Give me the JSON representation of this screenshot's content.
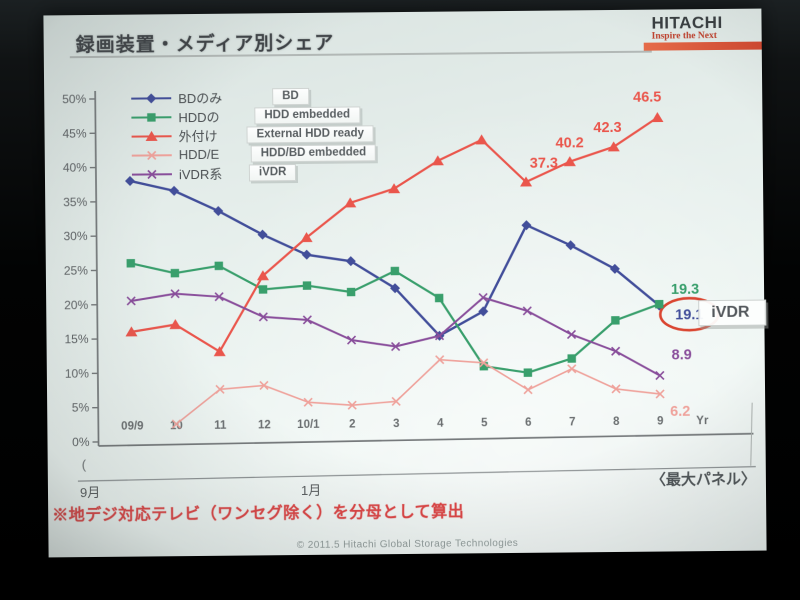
{
  "slide": {
    "title": "録画装置・メディア別シェア",
    "logo": {
      "brand": "HITACHI",
      "tagline": "Inspire the Next"
    },
    "footnote": "※地デジ対応テレビ（ワンセグ除く）を分母として算出",
    "panel_note": "〈最大パネル〉",
    "copyright": "© 2011.5 Hitachi Global Storage Technologies",
    "ivdr_callout": "iVDR",
    "left_paren": "("
  },
  "chart_data": {
    "type": "line",
    "title": "録画装置・メディア別シェア",
    "x_categories": [
      "09/9",
      "10",
      "11",
      "12",
      "10/1",
      "2",
      "3",
      "4",
      "5",
      "6",
      "7",
      "8",
      "9"
    ],
    "x_axis_suffix": "Yr",
    "y_ticks": [
      "0%",
      "5%",
      "10%",
      "15%",
      "20%",
      "25%",
      "30%",
      "35%",
      "40%",
      "45%",
      "50%"
    ],
    "ylim": [
      0,
      50
    ],
    "grid": false,
    "legend_position": "top-left",
    "sub_axis": {
      "start_label": "9月",
      "mid_label": "1月"
    },
    "annotation_circle_color": "#e0442e",
    "series": [
      {
        "name_jp": "BDのみ",
        "name_en": "BD",
        "color": "#414e9e",
        "marker": "diamond",
        "width": 2.4,
        "values": [
          38,
          36.5,
          33.5,
          30,
          27,
          26,
          22,
          15,
          18.5,
          31,
          28,
          24.5,
          19.1
        ],
        "end_label": {
          "text": "19.1",
          "dx": 30,
          "dy": 14,
          "circled": true
        }
      },
      {
        "name_jp": "HDDの",
        "name_en": "HDD embedded",
        "color": "#35a06b",
        "marker": "square",
        "width": 2.2,
        "values": [
          26,
          24.5,
          25.5,
          22,
          22.5,
          21.5,
          24.5,
          20.5,
          10.5,
          9.5,
          11.5,
          17,
          19.3
        ],
        "end_label": {
          "text": "19.3",
          "dx": 26,
          "dy": -10
        }
      },
      {
        "name_jp": "外付け",
        "name_en": "External HDD ready",
        "color": "#f0544a",
        "marker": "triangle",
        "width": 2.2,
        "values": [
          16,
          17,
          13,
          24,
          29.5,
          34.5,
          36.5,
          40.5,
          43.5,
          37.3,
          40.2,
          42.3,
          46.5
        ],
        "point_labels": [
          {
            "index": 9,
            "text": "37.3",
            "dx": 18,
            "dy": -14
          },
          {
            "index": 10,
            "text": "40.2",
            "dx": 0,
            "dy": -14
          },
          {
            "index": 11,
            "text": "42.3",
            "dx": -6,
            "dy": -15
          },
          {
            "index": 12,
            "text": "46.5",
            "dx": -10,
            "dy": -16
          }
        ]
      },
      {
        "name_jp": "HDD/E",
        "name_en": "HDD/BD embedded",
        "color": "#f2a19a",
        "marker": "x",
        "width": 1.6,
        "values": [
          null,
          2.5,
          7.5,
          8,
          5.5,
          5,
          5.5,
          11.5,
          11,
          7,
          10,
          7,
          6.2
        ],
        "end_label": {
          "text": "6.2",
          "dx": 20,
          "dy": 22
        }
      },
      {
        "name_jp": "iVDR系",
        "name_en": "iVDR",
        "color": "#8b4d9e",
        "marker": "x",
        "width": 2,
        "values": [
          20.5,
          21.5,
          21,
          18,
          17.5,
          14.5,
          13.5,
          15,
          20.5,
          18.5,
          15,
          12.5,
          8.9
        ],
        "end_label": {
          "text": "8.9",
          "dx": 22,
          "dy": -16
        }
      }
    ]
  }
}
